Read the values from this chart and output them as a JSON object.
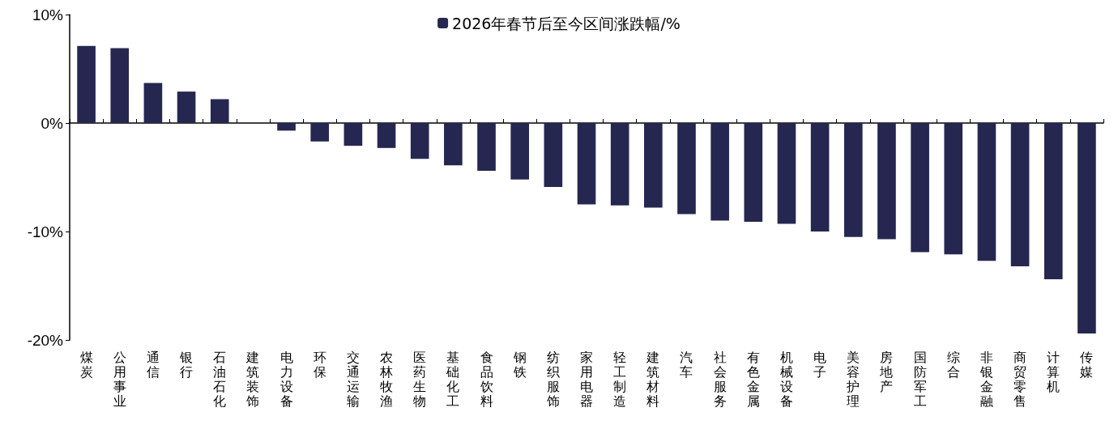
{
  "chart_data": {
    "type": "bar",
    "categories": [
      "煤炭",
      "公用事业",
      "通信",
      "银行",
      "石油石化",
      "建筑装饰",
      "电力设备",
      "环保",
      "交通运输",
      "农林牧渔",
      "医药生物",
      "基础化工",
      "食品饮料",
      "钢铁",
      "纺织服饰",
      "家用电器",
      "轻工制造",
      "建筑材料",
      "汽车",
      "社会服务",
      "有色金属",
      "机械设备",
      "电子",
      "美容护理",
      "房地产",
      "国防军工",
      "综合",
      "非银金融",
      "商贸零售",
      "计算机",
      "传媒"
    ],
    "series": [
      {
        "name": "2026年春节后至今区间涨跌幅/%",
        "color": "#262750",
        "values": [
          7.1,
          6.9,
          3.7,
          2.9,
          2.2,
          0,
          -0.7,
          -1.7,
          -2.1,
          -2.3,
          -3.3,
          -3.9,
          -4.4,
          -5.2,
          -5.9,
          -7.5,
          -7.6,
          -7.8,
          -8.4,
          -9.0,
          -9.1,
          -9.3,
          -10.0,
          -10.5,
          -10.7,
          -11.9,
          -12.1,
          -12.7,
          -13.2,
          -14.4,
          -19.4
        ]
      }
    ],
    "ylim": [
      -20,
      10
    ],
    "yticks": [
      {
        "value": 10,
        "label": "10%"
      },
      {
        "value": 0,
        "label": "0%"
      },
      {
        "value": -10,
        "label": "-10%"
      },
      {
        "value": -20,
        "label": "-20%"
      }
    ],
    "legend": "top"
  }
}
